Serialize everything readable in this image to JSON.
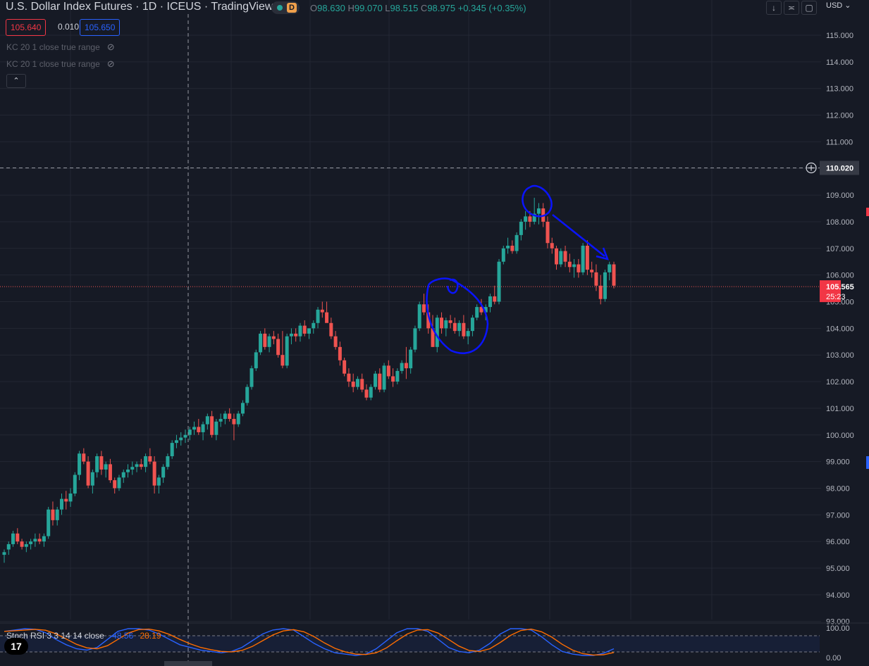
{
  "header": {
    "symbol": "U.S. Dollar Index Futures",
    "interval": "1D",
    "exchange": "ICEUS",
    "source": "TradingView",
    "badge": "D",
    "ohlc": {
      "o_label": "O",
      "o": "98.630",
      "h_label": "H",
      "h": "99.070",
      "l_label": "L",
      "l": "98.515",
      "c_label": "C",
      "c": "98.975",
      "change": "+0.345 (+0.35%)"
    }
  },
  "quote": {
    "bid": "105.640",
    "spread": "0.010",
    "ask": "105.650"
  },
  "indicators": [
    "KC 20 1 close true range",
    "KC 20 1 close true range"
  ],
  "currency": "USD",
  "colors": {
    "up": "#26a69a",
    "down": "#ef5350",
    "bg": "#161a25",
    "grid": "#232733",
    "annot": "#0a14ff",
    "k": "#2962ff",
    "d": "#ff6d00"
  },
  "stoch": {
    "label": "Stoch RSI",
    "params": "3 3 14 14 close",
    "k": "48.56",
    "d": "28.19",
    "axis": [
      "100.00",
      "0.00"
    ]
  },
  "crosshair": {
    "price": "110.020"
  },
  "last_price": {
    "price": "105.565",
    "countdown": "25:23"
  },
  "chart_data": {
    "type": "candlestick",
    "title": "U.S. Dollar Index Futures",
    "ylim": [
      93,
      115.5
    ],
    "yticks": [
      "115.000",
      "114.000",
      "113.000",
      "112.000",
      "111.000",
      "110.000",
      "109.000",
      "108.000",
      "107.000",
      "106.000",
      "105.000",
      "104.000",
      "103.000",
      "102.000",
      "101.000",
      "100.000",
      "99.000",
      "98.000",
      "97.000",
      "96.000",
      "95.000",
      "94.000",
      "93.000"
    ],
    "ohlc": [
      [
        95.5,
        95.7,
        95.2,
        95.6
      ],
      [
        95.7,
        96.0,
        95.5,
        95.9
      ],
      [
        95.9,
        96.4,
        95.8,
        96.3
      ],
      [
        96.3,
        96.5,
        95.9,
        96.0
      ],
      [
        96.0,
        96.1,
        95.7,
        95.8
      ],
      [
        95.8,
        96.0,
        95.6,
        95.9
      ],
      [
        95.9,
        96.1,
        95.7,
        96.0
      ],
      [
        96.0,
        96.3,
        95.8,
        96.1
      ],
      [
        96.1,
        96.3,
        95.9,
        96.0
      ],
      [
        96.0,
        96.3,
        95.8,
        96.2
      ],
      [
        96.2,
        97.3,
        96.1,
        97.2
      ],
      [
        97.2,
        97.5,
        96.6,
        96.8
      ],
      [
        96.8,
        97.3,
        96.6,
        97.2
      ],
      [
        97.2,
        97.8,
        97.0,
        97.6
      ],
      [
        97.6,
        97.9,
        97.2,
        97.5
      ],
      [
        97.5,
        98.0,
        97.3,
        97.8
      ],
      [
        97.8,
        98.6,
        97.7,
        98.5
      ],
      [
        98.5,
        99.4,
        98.3,
        99.3
      ],
      [
        99.3,
        99.5,
        98.9,
        99.0
      ],
      [
        99.0,
        99.2,
        98.0,
        98.1
      ],
      [
        98.1,
        98.7,
        97.8,
        98.6
      ],
      [
        98.6,
        99.3,
        98.4,
        99.2
      ],
      [
        99.2,
        99.4,
        98.5,
        98.7
      ],
      [
        98.7,
        99.0,
        98.4,
        98.9
      ],
      [
        98.9,
        99.1,
        98.2,
        98.3
      ],
      [
        98.3,
        98.4,
        97.8,
        98.0
      ],
      [
        98.0,
        98.5,
        97.9,
        98.4
      ],
      [
        98.4,
        98.7,
        98.2,
        98.6
      ],
      [
        98.6,
        98.9,
        98.4,
        98.7
      ],
      [
        98.7,
        99.0,
        98.5,
        98.8
      ],
      [
        98.8,
        99.0,
        98.6,
        98.9
      ],
      [
        98.9,
        99.1,
        98.7,
        98.8
      ],
      [
        98.8,
        99.3,
        98.6,
        99.2
      ],
      [
        99.2,
        99.5,
        98.9,
        99.0
      ],
      [
        99.0,
        99.2,
        97.8,
        98.1
      ],
      [
        98.1,
        98.5,
        97.8,
        98.4
      ],
      [
        98.4,
        98.9,
        98.2,
        98.8
      ],
      [
        98.8,
        99.3,
        98.7,
        99.2
      ],
      [
        99.2,
        99.8,
        99.1,
        99.7
      ],
      [
        99.7,
        100.0,
        99.5,
        99.8
      ],
      [
        99.8,
        100.1,
        99.6,
        99.9
      ],
      [
        99.9,
        100.2,
        99.7,
        100.0
      ],
      [
        100.0,
        100.3,
        99.8,
        100.2
      ],
      [
        100.2,
        100.5,
        100.0,
        100.3
      ],
      [
        100.3,
        100.6,
        100.0,
        100.1
      ],
      [
        100.1,
        100.5,
        99.8,
        100.4
      ],
      [
        100.4,
        100.8,
        100.2,
        100.7
      ],
      [
        100.7,
        100.9,
        99.9,
        100.0
      ],
      [
        100.0,
        100.6,
        99.8,
        100.5
      ],
      [
        100.5,
        100.8,
        100.3,
        100.6
      ],
      [
        100.6,
        100.9,
        100.4,
        100.8
      ],
      [
        100.8,
        101.0,
        100.5,
        100.6
      ],
      [
        100.6,
        100.8,
        99.8,
        100.4
      ],
      [
        100.4,
        100.9,
        100.3,
        100.8
      ],
      [
        100.8,
        101.3,
        100.7,
        101.2
      ],
      [
        101.2,
        101.9,
        101.1,
        101.8
      ],
      [
        101.8,
        102.6,
        101.7,
        102.5
      ],
      [
        102.5,
        103.2,
        102.4,
        103.1
      ],
      [
        103.1,
        103.9,
        103.0,
        103.8
      ],
      [
        103.8,
        104.0,
        103.2,
        103.3
      ],
      [
        103.3,
        103.8,
        103.1,
        103.7
      ],
      [
        103.7,
        103.9,
        103.4,
        103.6
      ],
      [
        103.6,
        103.8,
        102.9,
        103.0
      ],
      [
        103.0,
        103.9,
        102.5,
        102.6
      ],
      [
        102.6,
        103.8,
        102.5,
        103.7
      ],
      [
        103.7,
        104.0,
        103.4,
        103.8
      ],
      [
        103.8,
        104.0,
        103.5,
        103.7
      ],
      [
        103.7,
        104.2,
        103.5,
        104.1
      ],
      [
        104.1,
        104.3,
        103.7,
        103.8
      ],
      [
        103.8,
        104.0,
        103.6,
        104.0
      ],
      [
        104.0,
        104.3,
        103.8,
        104.2
      ],
      [
        104.2,
        104.8,
        104.0,
        104.7
      ],
      [
        104.7,
        105.0,
        104.4,
        104.6
      ],
      [
        104.6,
        105.0,
        104.3,
        104.2
      ],
      [
        104.2,
        104.4,
        103.6,
        103.7
      ],
      [
        103.7,
        103.9,
        103.2,
        103.3
      ],
      [
        103.3,
        103.5,
        102.6,
        102.8
      ],
      [
        102.8,
        102.9,
        102.2,
        102.3
      ],
      [
        102.3,
        102.5,
        101.8,
        102.0
      ],
      [
        102.0,
        102.3,
        101.6,
        101.8
      ],
      [
        101.8,
        102.2,
        101.7,
        102.1
      ],
      [
        102.1,
        102.3,
        101.6,
        101.7
      ],
      [
        101.7,
        101.9,
        101.3,
        101.4
      ],
      [
        101.4,
        101.9,
        101.3,
        101.8
      ],
      [
        101.8,
        102.4,
        101.7,
        102.3
      ],
      [
        102.3,
        102.5,
        101.6,
        101.7
      ],
      [
        101.7,
        102.7,
        101.6,
        102.6
      ],
      [
        102.6,
        102.8,
        102.1,
        102.2
      ],
      [
        102.2,
        102.5,
        101.8,
        102.0
      ],
      [
        102.0,
        102.5,
        101.9,
        102.4
      ],
      [
        102.4,
        102.8,
        102.3,
        102.7
      ],
      [
        102.7,
        103.3,
        102.1,
        102.5
      ],
      [
        102.5,
        103.3,
        102.3,
        103.2
      ],
      [
        103.2,
        104.1,
        103.1,
        104.0
      ],
      [
        104.0,
        105.0,
        103.9,
        104.9
      ],
      [
        104.9,
        105.3,
        104.5,
        104.6
      ],
      [
        104.6,
        104.9,
        103.8,
        104.0
      ],
      [
        104.0,
        104.5,
        103.3,
        103.3
      ],
      [
        103.3,
        104.5,
        103.1,
        104.4
      ],
      [
        104.4,
        104.6,
        103.8,
        104.0
      ],
      [
        104.0,
        104.4,
        103.7,
        104.3
      ],
      [
        104.3,
        104.5,
        104.0,
        104.2
      ],
      [
        104.2,
        104.4,
        103.8,
        103.9
      ],
      [
        103.9,
        104.3,
        103.7,
        104.2
      ],
      [
        104.2,
        104.5,
        103.6,
        103.7
      ],
      [
        103.7,
        104.0,
        103.4,
        103.9
      ],
      [
        103.9,
        104.5,
        103.7,
        104.4
      ],
      [
        104.4,
        104.9,
        104.3,
        104.8
      ],
      [
        104.8,
        105.1,
        104.5,
        104.6
      ],
      [
        104.6,
        104.9,
        104.3,
        104.8
      ],
      [
        104.8,
        105.3,
        104.6,
        105.2
      ],
      [
        105.2,
        105.6,
        104.9,
        105.0
      ],
      [
        105.0,
        106.6,
        104.9,
        106.5
      ],
      [
        106.5,
        107.1,
        106.4,
        107.0
      ],
      [
        107.0,
        107.4,
        106.8,
        107.1
      ],
      [
        107.1,
        107.3,
        106.8,
        106.9
      ],
      [
        106.9,
        107.6,
        106.8,
        107.5
      ],
      [
        107.5,
        108.1,
        107.3,
        108.0
      ],
      [
        108.0,
        108.4,
        107.7,
        108.2
      ],
      [
        108.2,
        108.4,
        107.8,
        108.0
      ],
      [
        108.0,
        108.9,
        107.9,
        108.3
      ],
      [
        108.3,
        108.7,
        107.9,
        108.5
      ],
      [
        108.5,
        108.7,
        107.8,
        108.0
      ],
      [
        108.0,
        108.2,
        107.0,
        107.2
      ],
      [
        107.2,
        107.4,
        106.8,
        107.0
      ],
      [
        107.0,
        107.1,
        106.2,
        106.4
      ],
      [
        106.4,
        107.0,
        106.3,
        106.9
      ],
      [
        106.9,
        107.1,
        106.3,
        106.5
      ],
      [
        106.5,
        106.8,
        106.1,
        106.3
      ],
      [
        106.3,
        106.6,
        105.9,
        106.4
      ],
      [
        106.4,
        106.6,
        105.9,
        106.1
      ],
      [
        106.1,
        107.2,
        106.0,
        107.1
      ],
      [
        107.1,
        107.3,
        106.0,
        106.2
      ],
      [
        106.2,
        106.5,
        105.9,
        106.1
      ],
      [
        106.1,
        106.4,
        105.4,
        105.6
      ],
      [
        105.6,
        106.0,
        104.9,
        105.1
      ],
      [
        105.1,
        106.2,
        105.0,
        106.1
      ],
      [
        106.1,
        106.5,
        105.8,
        106.4
      ],
      [
        106.4,
        106.5,
        105.5,
        105.6
      ]
    ]
  }
}
